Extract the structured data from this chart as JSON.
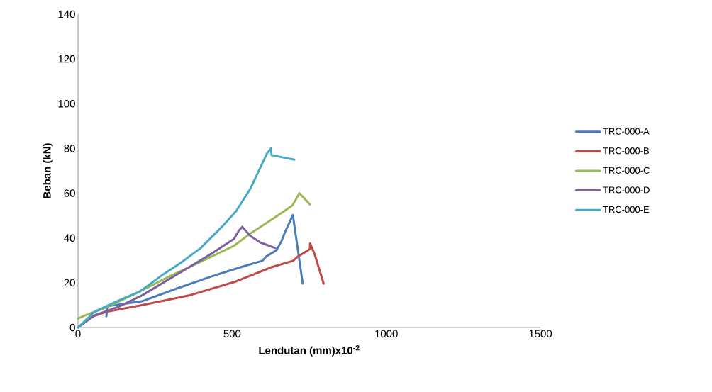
{
  "chart_data": {
    "type": "line",
    "xlabel": "Lendutan (mm)x10$^{-2}$",
    "ylabel": "Beban (kN)",
    "xlim": [
      0,
      1500
    ],
    "ylim": [
      0,
      140
    ],
    "xticks": [
      0,
      500,
      1000,
      1500
    ],
    "yticks": [
      0,
      20,
      40,
      60,
      80,
      100,
      120,
      140
    ],
    "legend": "right",
    "grid": false,
    "series": [
      {
        "name": "TRC-000-A",
        "color": "#4a7ebb",
        "x": [
          92,
          95,
          207,
          322,
          437,
          529,
          598,
          610,
          644,
          660,
          672,
          683,
          697,
          729
        ],
        "values": [
          5,
          9.5,
          11.7,
          17.5,
          23,
          27,
          29.8,
          31.7,
          34.5,
          38.6,
          42.8,
          46,
          50.3,
          19.6
        ]
      },
      {
        "name": "TRC-000-B",
        "color": "#be4b48",
        "x": [
          50,
          92,
          207,
          360,
          513,
          629,
          698,
          713,
          752,
          753,
          767,
          797
        ],
        "values": [
          5,
          7,
          10,
          14.3,
          20.6,
          27,
          29.8,
          31.7,
          35,
          37.6,
          33,
          19.6
        ]
      },
      {
        "name": "TRC-000-C",
        "color": "#98b954",
        "x": [
          0,
          23,
          92,
          191,
          299,
          407,
          506,
          559,
          637,
          695,
          706,
          718,
          732,
          752
        ],
        "values": [
          4,
          5.4,
          9,
          15.5,
          23,
          30,
          36.5,
          42,
          49,
          54.5,
          57,
          60,
          58,
          55
        ]
      },
      {
        "name": "TRC-000-D",
        "color": "#7d60a0",
        "x": [
          0,
          53,
          131,
          207,
          322,
          437,
          506,
          522,
          533,
          559,
          591,
          640
        ],
        "values": [
          0,
          5.4,
          9.2,
          14.3,
          23.8,
          33.3,
          39.6,
          43.3,
          45,
          40.9,
          38,
          35.5
        ]
      },
      {
        "name": "TRC-000-E",
        "color": "#46aac5",
        "x": [
          0,
          53,
          131,
          200,
          269,
          329,
          398,
          467,
          513,
          559,
          614,
          626,
          628,
          702
        ],
        "values": [
          0,
          7,
          12,
          16,
          23,
          28.5,
          35.5,
          45,
          52,
          62,
          78,
          80,
          77,
          75
        ]
      }
    ]
  }
}
